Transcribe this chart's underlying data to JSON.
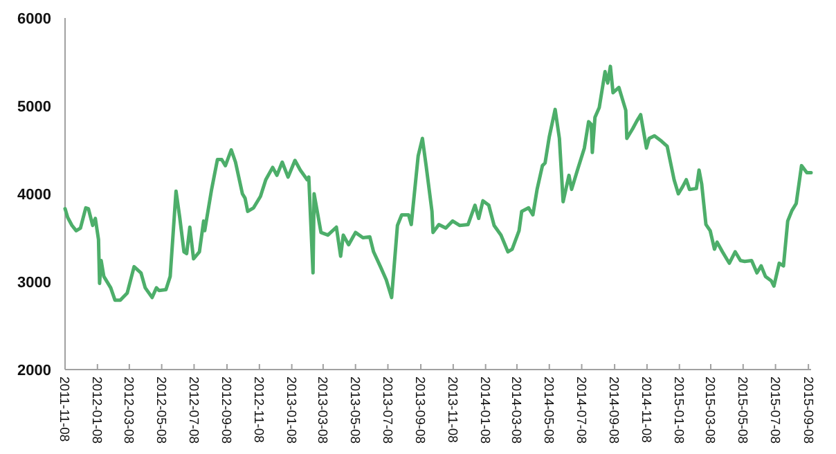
{
  "chart_data": {
    "type": "line",
    "x": [
      "2011-11-08",
      "2011-11-13",
      "2011-11-21",
      "2011-11-29",
      "2011-12-07",
      "2011-12-17",
      "2011-12-22",
      "2011-12-30",
      "2012-01-04",
      "2012-01-10",
      "2012-01-12",
      "2012-01-15",
      "2012-01-20",
      "2012-02-02",
      "2012-02-10",
      "2012-02-20",
      "2012-03-04",
      "2012-03-17",
      "2012-03-30",
      "2012-04-07",
      "2012-04-20",
      "2012-04-28",
      "2012-05-03",
      "2012-05-16",
      "2012-05-24",
      "2012-06-04",
      "2012-06-11",
      "2012-06-19",
      "2012-06-24",
      "2012-06-30",
      "2012-07-07",
      "2012-07-18",
      "2012-07-26",
      "2012-07-28",
      "2012-08-10",
      "2012-08-21",
      "2012-08-29",
      "2012-09-05",
      "2012-09-16",
      "2012-09-24",
      "2012-10-07",
      "2012-10-12",
      "2012-10-17",
      "2012-10-28",
      "2012-11-10",
      "2012-11-20",
      "2012-12-03",
      "2012-12-11",
      "2012-12-21",
      "2013-01-01",
      "2013-01-14",
      "2013-01-24",
      "2013-02-06",
      "2013-02-09",
      "2013-02-17",
      "2013-02-19",
      "2013-03-04",
      "2013-03-17",
      "2013-04-02",
      "2013-04-10",
      "2013-04-15",
      "2013-04-25",
      "2013-05-08",
      "2013-05-22",
      "2013-06-04",
      "2013-06-11",
      "2013-06-24",
      "2013-07-05",
      "2013-07-15",
      "2013-07-26",
      "2013-08-03",
      "2013-08-16",
      "2013-08-21",
      "2013-09-03",
      "2013-09-11",
      "2013-09-18",
      "2013-09-29",
      "2013-10-01",
      "2013-10-12",
      "2013-10-25",
      "2013-11-07",
      "2013-11-20",
      "2013-12-06",
      "2013-12-19",
      "2013-12-26",
      "2014-01-03",
      "2014-01-14",
      "2014-01-24",
      "2014-02-06",
      "2014-02-19",
      "2014-02-27",
      "2014-03-12",
      "2014-03-17",
      "2014-03-30",
      "2014-04-07",
      "2014-04-15",
      "2014-04-25",
      "2014-04-30",
      "2014-05-08",
      "2014-05-19",
      "2014-05-27",
      "2014-06-03",
      "2014-06-14",
      "2014-06-19",
      "2014-06-30",
      "2014-07-13",
      "2014-07-21",
      "2014-07-26",
      "2014-07-28",
      "2014-08-02",
      "2014-08-10",
      "2014-08-21",
      "2014-08-26",
      "2014-08-31",
      "2014-09-05",
      "2014-09-16",
      "2014-09-29",
      "2014-10-01",
      "2014-10-12",
      "2014-10-20",
      "2014-10-27",
      "2014-11-07",
      "2014-11-12",
      "2014-11-22",
      "2014-12-05",
      "2014-12-16",
      "2014-12-29",
      "2015-01-06",
      "2015-01-14",
      "2015-01-21",
      "2015-01-27",
      "2015-02-09",
      "2015-02-14",
      "2015-02-19",
      "2015-02-27",
      "2015-03-07",
      "2015-03-15",
      "2015-03-20",
      "2015-03-30",
      "2015-04-07",
      "2015-04-12",
      "2015-04-23",
      "2015-05-03",
      "2015-05-11",
      "2015-05-24",
      "2015-06-03",
      "2015-06-11",
      "2015-06-19",
      "2015-06-30",
      "2015-07-05",
      "2015-07-15",
      "2015-07-23",
      "2015-07-31",
      "2015-08-08",
      "2015-08-16",
      "2015-08-26",
      "2015-09-05",
      "2015-09-13"
    ],
    "series": [
      {
        "color": "#4dae6a",
        "values": [
          3830,
          3730,
          3640,
          3580,
          3610,
          3840,
          3830,
          3640,
          3720,
          3480,
          2980,
          3240,
          3060,
          2930,
          2790,
          2790,
          2870,
          3170,
          3100,
          2930,
          2820,
          2930,
          2900,
          2910,
          3060,
          4030,
          3730,
          3340,
          3320,
          3620,
          3260,
          3340,
          3690,
          3580,
          4050,
          4390,
          4390,
          4320,
          4500,
          4360,
          4000,
          3950,
          3800,
          3840,
          3970,
          4160,
          4300,
          4210,
          4360,
          4190,
          4380,
          4270,
          4160,
          4190,
          3100,
          4000,
          3560,
          3530,
          3620,
          3290,
          3530,
          3420,
          3560,
          3500,
          3510,
          3340,
          3170,
          3020,
          2820,
          3640,
          3760,
          3760,
          3650,
          4430,
          4630,
          4320,
          3800,
          3560,
          3650,
          3610,
          3690,
          3640,
          3650,
          3870,
          3720,
          3920,
          3870,
          3640,
          3530,
          3340,
          3370,
          3580,
          3800,
          3840,
          3760,
          4050,
          4320,
          4350,
          4650,
          4960,
          4630,
          3910,
          4210,
          4050,
          4270,
          4520,
          4820,
          4790,
          4470,
          4870,
          4980,
          5390,
          5260,
          5450,
          5150,
          5210,
          4950,
          4630,
          4740,
          4830,
          4900,
          4520,
          4630,
          4660,
          4600,
          4540,
          4160,
          4000,
          4080,
          4160,
          4050,
          4060,
          4270,
          4110,
          3650,
          3580,
          3370,
          3450,
          3340,
          3260,
          3210,
          3340,
          3240,
          3230,
          3240,
          3100,
          3180,
          3060,
          3010,
          2950,
          3210,
          3180,
          3690,
          3810,
          3890,
          4320,
          4240,
          4240
        ]
      }
    ],
    "xlim": [
      "2011-11-08",
      "2015-09-13"
    ],
    "xticks": [
      "2011-11-08",
      "2012-01-08",
      "2012-03-08",
      "2012-05-08",
      "2012-07-08",
      "2012-09-08",
      "2012-11-08",
      "2013-01-08",
      "2013-03-08",
      "2013-05-08",
      "2013-07-08",
      "2013-09-08",
      "2013-11-08",
      "2014-01-08",
      "2014-03-08",
      "2014-05-08",
      "2014-07-08",
      "2014-09-08",
      "2014-11-08",
      "2015-01-08",
      "2015-03-08",
      "2015-05-08",
      "2015-07-08",
      "2015-09-08"
    ],
    "ylim": [
      2000,
      6000
    ],
    "yticks": [
      2000,
      3000,
      4000,
      5000,
      6000
    ],
    "grid": false,
    "marker": "none",
    "line_style": "solid"
  }
}
